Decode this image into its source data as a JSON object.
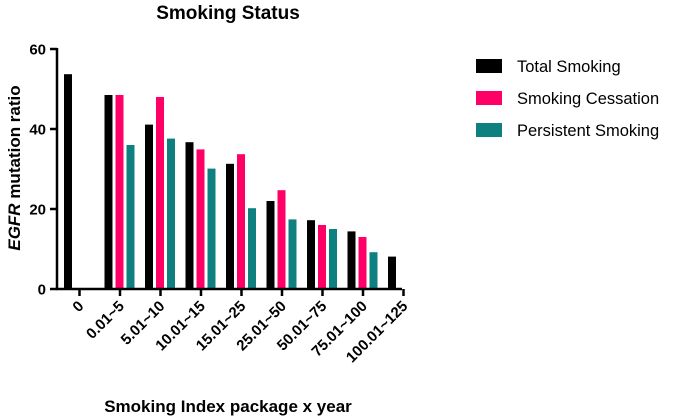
{
  "chart_data": {
    "type": "bar",
    "title": "Smoking Status",
    "xlabel": "Smoking Index package x year",
    "ylabel_italic": "EGFR",
    "ylabel_rest": " mutation ratio",
    "ylim": [
      0,
      60
    ],
    "yticks": [
      "0",
      "20",
      "40",
      "60"
    ],
    "grid": false,
    "legend_position": "right",
    "categories": [
      "0",
      "0.01~5",
      "5.01~10",
      "10.01~15",
      "15.01~25",
      "25.01~50",
      "50.01~75",
      "75.01~100",
      "100.01~125"
    ],
    "series": [
      {
        "name": "Total Smoking",
        "color": "#000000",
        "values": [
          53.7,
          48.5,
          41.1,
          36.7,
          31.3,
          22.0,
          17.2,
          14.4,
          8.1
        ]
      },
      {
        "name": "Smoking Cessation",
        "color": "#ff0066",
        "values": [
          null,
          48.5,
          48.0,
          34.9,
          33.7,
          24.7,
          16.0,
          13.0,
          null
        ]
      },
      {
        "name": "Persistent Smoking",
        "color": "#0f8080",
        "values": [
          null,
          36.0,
          37.6,
          30.1,
          20.2,
          17.4,
          15.0,
          9.2,
          null
        ]
      }
    ]
  }
}
